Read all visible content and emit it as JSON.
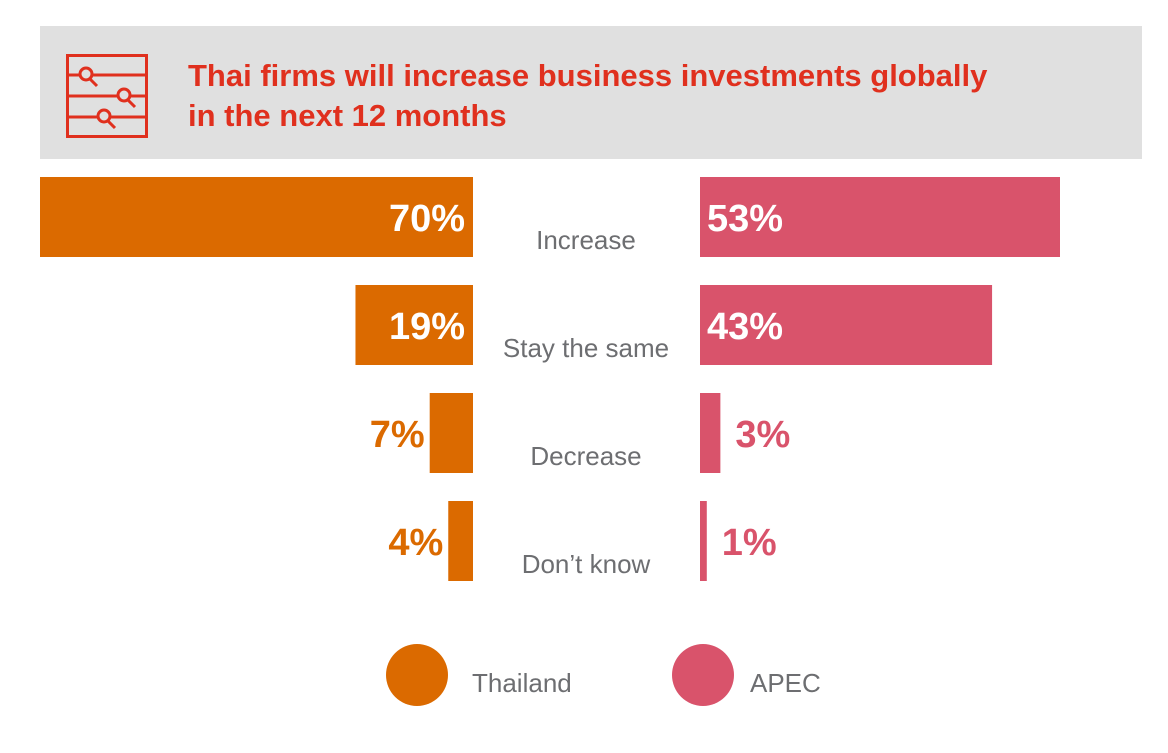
{
  "header": {
    "title_line1": "Thai firms will increase business investments globally",
    "title_line2": "in the next 12 months",
    "icon": "sliders-search-icon",
    "title_color": "#e0301e"
  },
  "colors": {
    "thailand": "#db6a00",
    "apec": "#d9536b",
    "category_text": "#6d6e71"
  },
  "chart_data": {
    "type": "bar",
    "orientation": "horizontal-diverging",
    "categories": [
      "Increase",
      "Stay the same",
      "Decrease",
      "Don’t know"
    ],
    "series": [
      {
        "name": "Thailand",
        "values": [
          70,
          19,
          7,
          4
        ],
        "labels": [
          "70%",
          "19%",
          "7%",
          "4%"
        ]
      },
      {
        "name": "APEC",
        "values": [
          53,
          43,
          3,
          1
        ],
        "labels": [
          "53%",
          "43%",
          "3%",
          "1%"
        ]
      }
    ],
    "unit": "%",
    "legend_position": "bottom"
  },
  "legend": {
    "thailand_label": "Thailand",
    "apec_label": "APEC"
  }
}
